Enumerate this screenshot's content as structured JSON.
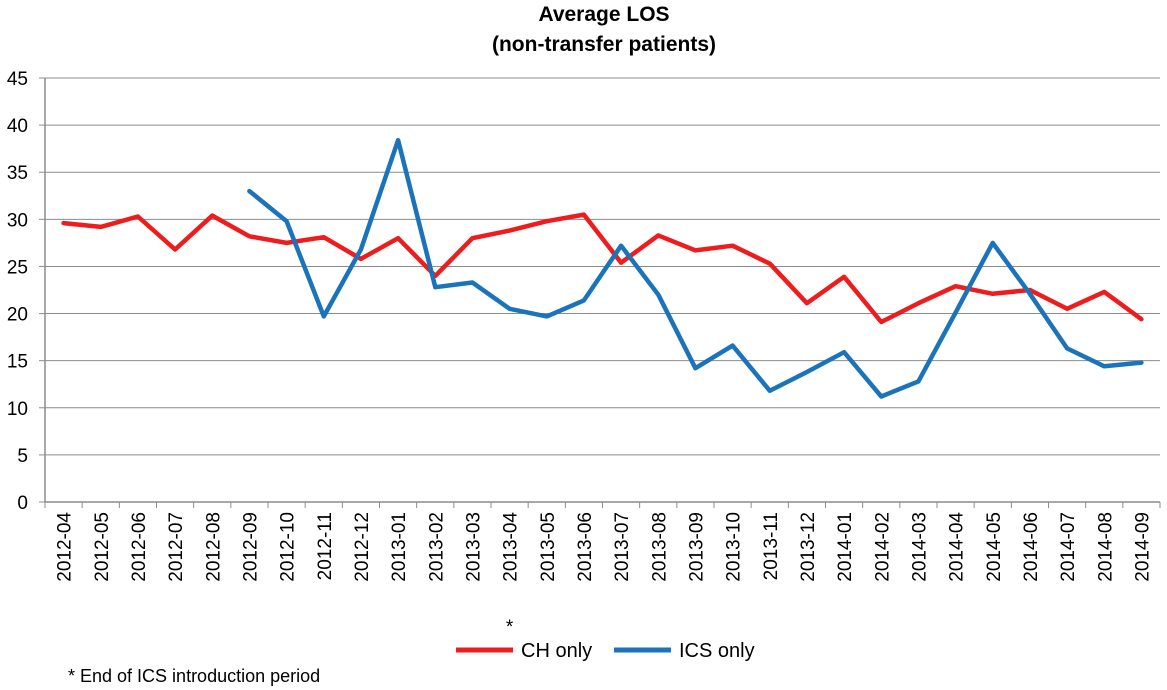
{
  "chart_data": {
    "type": "line",
    "title": "Average LOS",
    "subtitle": "(non-transfer patients)",
    "xlabel": "",
    "ylabel": "",
    "ylim": [
      0,
      45
    ],
    "y_ticks": [
      0,
      5,
      10,
      15,
      20,
      25,
      30,
      35,
      40,
      45
    ],
    "grid": true,
    "legend_position": "bottom",
    "categories": [
      "2012-04",
      "2012-05",
      "2012-06",
      "2012-07",
      "2012-08",
      "2012-09",
      "2012-10",
      "2012-11",
      "2012-12",
      "2013-01",
      "2013-02",
      "2013-03",
      "2013-04",
      "2013-05",
      "2013-06",
      "2013-07",
      "2013-08",
      "2013-09",
      "2013-10",
      "2013-11",
      "2013-12",
      "2014-01",
      "2014-02",
      "2014-03",
      "2014-04",
      "2014-05",
      "2014-06",
      "2014-07",
      "2014-08",
      "2014-09"
    ],
    "series": [
      {
        "name": "CH only",
        "color": "#ee1c1c",
        "values": [
          29.6,
          29.2,
          30.3,
          26.8,
          30.4,
          28.2,
          27.5,
          28.1,
          25.8,
          28.0,
          24.0,
          28.0,
          28.8,
          29.8,
          30.5,
          25.4,
          28.3,
          26.7,
          27.2,
          25.3,
          21.1,
          23.9,
          19.1,
          21.1,
          22.9,
          22.1,
          22.5,
          20.5,
          22.3,
          19.4
        ]
      },
      {
        "name": "ICS only",
        "color": "#1b73bb",
        "values": [
          null,
          null,
          null,
          null,
          null,
          33.0,
          29.8,
          19.7,
          26.8,
          38.4,
          22.8,
          23.3,
          20.5,
          19.7,
          21.4,
          27.2,
          22.0,
          14.2,
          16.6,
          11.8,
          13.8,
          15.9,
          11.2,
          12.8,
          20.1,
          27.5,
          22.1,
          16.3,
          14.4,
          14.8
        ]
      }
    ],
    "annotations": [
      {
        "text": "*",
        "category": "2013-04"
      }
    ],
    "footnote": "* End of ICS introduction period"
  }
}
